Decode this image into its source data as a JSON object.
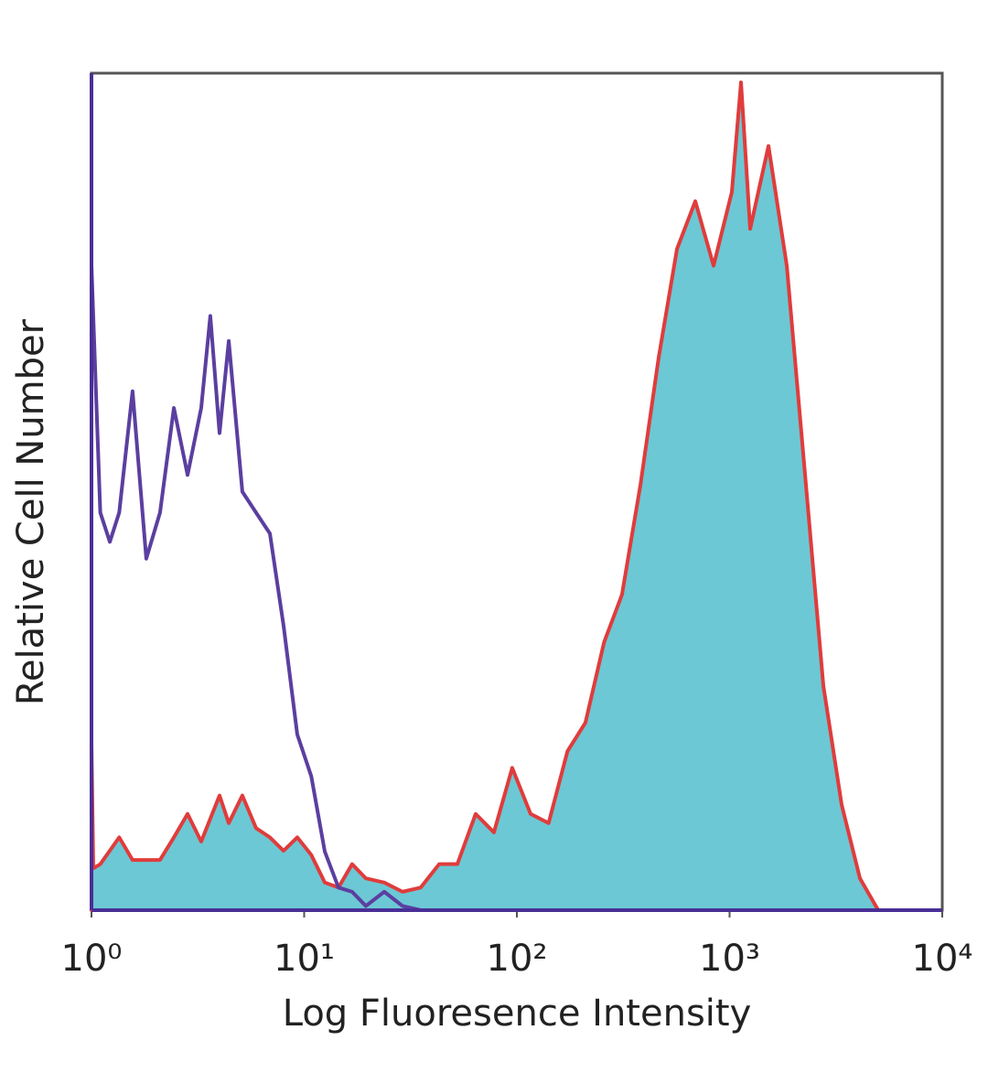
{
  "chart_data": {
    "type": "line",
    "xscale": "log",
    "xlabel": "Log Fluoresence Intensity",
    "ylabel": "Relative Cell Number",
    "xlim": [
      1,
      10000
    ],
    "ylim": [
      0,
      100
    ],
    "xticks": [
      {
        "value": 1,
        "label": "10⁰"
      },
      {
        "value": 10,
        "label": "10¹"
      },
      {
        "value": 100,
        "label": "10²"
      },
      {
        "value": 1000,
        "label": "10³"
      },
      {
        "value": 10000,
        "label": "10⁴"
      }
    ],
    "series": [
      {
        "color": "#e03c3c",
        "fill": "#6cc8d4",
        "x": [
          1,
          1.02,
          1.1,
          1.35,
          1.56,
          2.1,
          2.44,
          2.83,
          3.28,
          4,
          4.42,
          5.12,
          5.94,
          6.9,
          8,
          9.28,
          10.8,
          12.5,
          14.5,
          16.8,
          19.5,
          23.8,
          29,
          35.3,
          43.1,
          52.5,
          64,
          78,
          95.1,
          116,
          141,
          173,
          210,
          257,
          312,
          381,
          464,
          566,
          690,
          841,
          1025,
          1132,
          1250,
          1524,
          1858,
          2265,
          2761,
          3365,
          4102,
          5000
        ],
        "values": [
          20,
          5,
          5.5,
          8.7,
          6,
          6,
          8.7,
          11.5,
          8.2,
          13.7,
          10.4,
          13.7,
          9.8,
          8.7,
          7.1,
          8.7,
          6.6,
          3.3,
          2.7,
          5.5,
          3.8,
          3.3,
          2.2,
          2.7,
          5.5,
          5.5,
          11.5,
          9.3,
          17,
          11.5,
          10.4,
          19,
          22.4,
          32,
          37.7,
          50.8,
          66,
          79,
          84.7,
          77,
          85.8,
          98.9,
          81.4,
          91.3,
          77,
          52,
          26.8,
          12.6,
          3.8,
          0
        ]
      },
      {
        "color": "#5b3fa0",
        "x": [
          1,
          1.1,
          1.22,
          1.35,
          1.56,
          1.81,
          2.1,
          2.44,
          2.83,
          3.28,
          3.62,
          4,
          4.42,
          5.12,
          5.94,
          6.9,
          8,
          9.28,
          10.8,
          12.5,
          14.5,
          16.8,
          19.5,
          23.8,
          29,
          35.3,
          10000
        ],
        "values": [
          77,
          47.5,
          44,
          47.5,
          62,
          42,
          47.5,
          60,
          52,
          60,
          71,
          57,
          68,
          50,
          47.5,
          45,
          34,
          21,
          16,
          7,
          2.7,
          2.2,
          0.5,
          2.2,
          0.5,
          0,
          0
        ]
      }
    ]
  }
}
